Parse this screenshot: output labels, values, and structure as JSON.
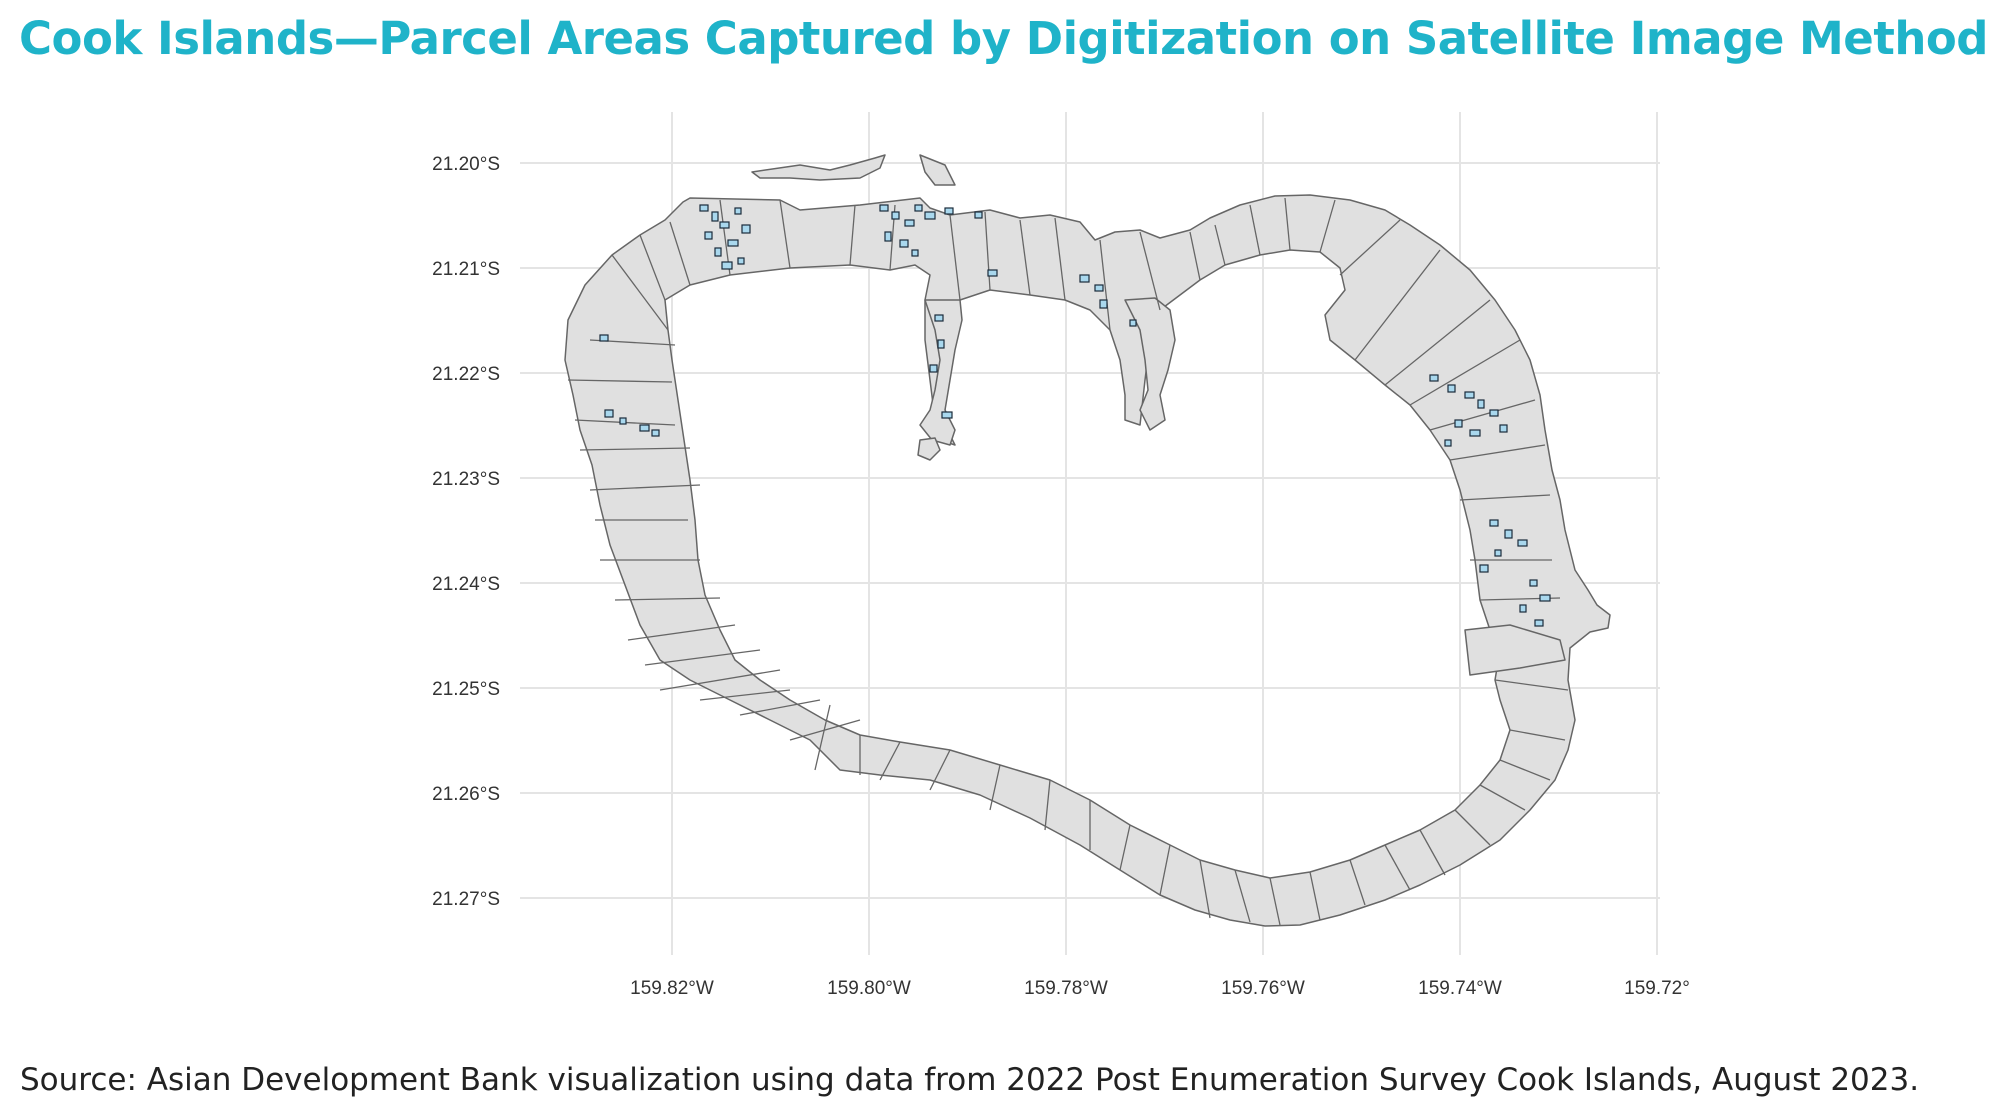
{
  "title": "Cook Islands—Parcel Areas Captured by Digitization on Satellite Image Method",
  "source": "Source: Asian Development Bank visualization using data from 2022 Post Enumeration Survey Cook Islands, August 2023.",
  "map": {
    "lat_ticks": [
      "21.20°S",
      "21.21°S",
      "21.22°S",
      "21.23°S",
      "21.24°S",
      "21.25°S",
      "21.26°S",
      "21.27°S"
    ],
    "lon_ticks": [
      "159.82°W",
      "159.80°W",
      "159.78°W",
      "159.76°W",
      "159.74°W",
      "159.72°"
    ],
    "lat_values": [
      -21.2,
      -21.21,
      -21.22,
      -21.23,
      -21.24,
      -21.25,
      -21.26,
      -21.27
    ],
    "lon_values": [
      -159.82,
      -159.8,
      -159.78,
      -159.76,
      -159.74,
      -159.72
    ],
    "colors": {
      "parcel_fill": "#e0e0e0",
      "parcel_stroke": "#666666",
      "digitized_fill": "#a9d8ee",
      "digitized_stroke": "#1a2b3a",
      "grid": "#e4e4e4",
      "title": "#1fb3c9"
    }
  }
}
